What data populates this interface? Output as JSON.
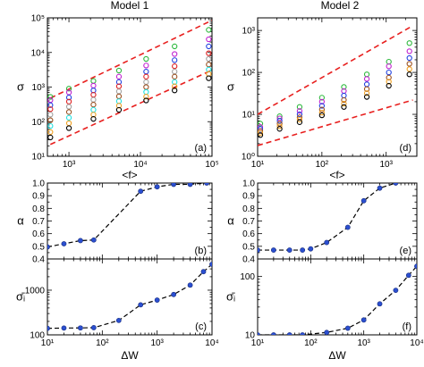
{
  "figure": {
    "titles": [
      "Model 1",
      "Model 2"
    ]
  },
  "chart_data": [
    {
      "type": "scatter",
      "panel": "(a)",
      "title": "Model 1",
      "xlabel": "<f>",
      "ylabel": "σ",
      "xscale": "log",
      "yscale": "log",
      "xlim": [
        500,
        100000
      ],
      "ylim": [
        10,
        100000
      ],
      "xticklabels": [
        "10³",
        "10⁴",
        "10⁵"
      ],
      "yticklabels": [
        "10¹",
        "10²",
        "10³",
        "10⁴",
        "10⁵"
      ],
      "bounds": [
        {
          "style": "dashed",
          "color": "#e8201f",
          "points": [
            [
              550,
              480
            ],
            [
              100000,
              85000
            ]
          ]
        },
        {
          "style": "dashed",
          "color": "#e8201f",
          "points": [
            [
              550,
              22
            ],
            [
              100000,
              3100
            ]
          ]
        }
      ],
      "series": [
        {
          "color": "#2db83d",
          "x": [
            550,
            1000,
            2200,
            5000,
            12000,
            30000,
            90000
          ],
          "y": [
            520,
            900,
            1500,
            3000,
            6500,
            15000,
            45000
          ]
        },
        {
          "color": "#c020d0",
          "x": [
            550,
            1000,
            2200,
            5000,
            12000,
            30000,
            90000
          ],
          "y": [
            420,
            700,
            1100,
            2000,
            4200,
            9000,
            24000
          ]
        },
        {
          "color": "#2040e0",
          "x": [
            550,
            1000,
            2200,
            5000,
            12000,
            30000,
            90000
          ],
          "y": [
            300,
            500,
            800,
            1400,
            2800,
            6000,
            15000
          ]
        },
        {
          "color": "#e02020",
          "x": [
            550,
            1000,
            2200,
            5000,
            12000,
            30000,
            90000
          ],
          "y": [
            230,
            380,
            600,
            1050,
            2000,
            4000,
            9500
          ]
        },
        {
          "color": "#a0a0a0",
          "x": [
            550,
            1000,
            2200,
            5000,
            12000,
            30000,
            90000
          ],
          "y": [
            160,
            270,
            430,
            750,
            1400,
            2800,
            6500
          ]
        },
        {
          "color": "#9a5020",
          "x": [
            550,
            1000,
            2200,
            5000,
            12000,
            30000,
            90000
          ],
          "y": [
            110,
            190,
            310,
            540,
            1000,
            2000,
            4500
          ]
        },
        {
          "color": "#20e0e0",
          "x": [
            550,
            1000,
            2200,
            5000,
            12000,
            30000,
            90000
          ],
          "y": [
            75,
            130,
            220,
            390,
            720,
            1400,
            3200
          ]
        },
        {
          "color": "#f0a020",
          "x": [
            550,
            1000,
            2200,
            5000,
            12000,
            30000,
            90000
          ],
          "y": [
            50,
            90,
            160,
            290,
            530,
            1050,
            2400
          ]
        },
        {
          "color": "#000000",
          "x": [
            550,
            1000,
            2200,
            5000,
            12000,
            30000,
            90000
          ],
          "y": [
            35,
            65,
            120,
            220,
            410,
            800,
            1800
          ]
        }
      ]
    },
    {
      "type": "scatter",
      "panel": "(d)",
      "title": "Model 2",
      "xlabel": "<f>",
      "ylabel": "σ",
      "xscale": "log",
      "yscale": "log",
      "xlim": [
        10,
        3000
      ],
      "ylim": [
        1,
        2000
      ],
      "xticklabels": [
        "10¹",
        "10²",
        "10³"
      ],
      "yticklabels": [
        "10⁰",
        "10¹",
        "10²",
        "10³"
      ],
      "bounds": [
        {
          "style": "dashed",
          "color": "#e8201f",
          "points": [
            [
              10,
              10
            ],
            [
              2600,
              1300
            ]
          ]
        },
        {
          "style": "dashed",
          "color": "#e8201f",
          "points": [
            [
              10,
              1.8
            ],
            [
              2600,
              22
            ]
          ]
        }
      ],
      "series": [
        {
          "color": "#2db83d",
          "x": [
            11,
            22,
            45,
            100,
            220,
            500,
            1100,
            2300
          ],
          "y": [
            6,
            9,
            15,
            25,
            45,
            90,
            180,
            500
          ]
        },
        {
          "color": "#c020d0",
          "x": [
            11,
            22,
            45,
            100,
            220,
            500,
            1100,
            2300
          ],
          "y": [
            5,
            8,
            12,
            20,
            36,
            70,
            140,
            320
          ]
        },
        {
          "color": "#2040e0",
          "x": [
            11,
            22,
            45,
            100,
            220,
            500,
            1100,
            2300
          ],
          "y": [
            4.5,
            7,
            10,
            16,
            28,
            52,
            100,
            220
          ]
        },
        {
          "color": "#9a5020",
          "x": [
            11,
            22,
            45,
            100,
            220,
            500,
            1100,
            2300
          ],
          "y": [
            4,
            6,
            8.5,
            13,
            22,
            40,
            75,
            160
          ]
        },
        {
          "color": "#f0a020",
          "x": [
            11,
            22,
            45,
            100,
            220,
            500,
            1100,
            2300
          ],
          "y": [
            3.6,
            5.2,
            7.5,
            11,
            18,
            32,
            60,
            120
          ]
        },
        {
          "color": "#000000",
          "x": [
            11,
            22,
            45,
            100,
            220,
            500,
            1100,
            2300
          ],
          "y": [
            3.2,
            4.5,
            6.5,
            9.5,
            15,
            26,
            48,
            90
          ]
        }
      ]
    },
    {
      "type": "line",
      "panel": "(b)",
      "xlabel": "",
      "ylabel": "α",
      "xscale": "log",
      "xlim": [
        10,
        10000
      ],
      "ylim": [
        0.4,
        1.0
      ],
      "yticklabels": [
        "0.4",
        "0.5",
        "0.6",
        "0.7",
        "0.8",
        "0.9",
        "1.0"
      ],
      "series": [
        {
          "x": [
            10,
            20,
            40,
            70,
            500,
            1000,
            2000,
            4000,
            8000
          ],
          "y": [
            0.495,
            0.52,
            0.545,
            0.55,
            0.935,
            0.97,
            0.99,
            0.99,
            1.0
          ]
        }
      ]
    },
    {
      "type": "line",
      "panel": "(e)",
      "xlabel": "",
      "ylabel": "α",
      "xscale": "log",
      "xlim": [
        10,
        10000
      ],
      "ylim": [
        0.4,
        1.0
      ],
      "yticklabels": [
        "0.4",
        "0.5",
        "0.6",
        "0.7",
        "0.8",
        "0.9",
        "1.0"
      ],
      "series": [
        {
          "x": [
            10,
            20,
            40,
            70,
            100,
            200,
            500,
            1000,
            2000,
            4000
          ],
          "y": [
            0.47,
            0.47,
            0.47,
            0.47,
            0.48,
            0.53,
            0.65,
            0.86,
            0.96,
            1.0
          ]
        }
      ]
    },
    {
      "type": "line",
      "panel": "(c)",
      "xlabel": "ΔW",
      "ylabel": "σ̄ᵢ",
      "xscale": "log",
      "yscale": "log",
      "xlim": [
        10,
        10000
      ],
      "ylim": [
        100,
        5000
      ],
      "xticklabels": [
        "10¹",
        "10²",
        "10³",
        "10⁴"
      ],
      "yticklabels": [
        "100",
        "1000"
      ],
      "series": [
        {
          "x": [
            10,
            20,
            40,
            70,
            200,
            500,
            1000,
            2000,
            4000,
            7000,
            10000
          ],
          "y": [
            140,
            142,
            143,
            145,
            210,
            470,
            600,
            800,
            1300,
            2600,
            3800
          ]
        }
      ]
    },
    {
      "type": "line",
      "panel": "(f)",
      "xlabel": "ΔW",
      "ylabel": "σ̄ᵢ",
      "xscale": "log",
      "yscale": "log",
      "xlim": [
        10,
        10000
      ],
      "ylim": [
        10,
        200
      ],
      "xticklabels": [
        "10¹",
        "10²",
        "10³",
        "10⁴"
      ],
      "yticklabels": [
        "10",
        "100"
      ],
      "series": [
        {
          "x": [
            10,
            20,
            40,
            70,
            200,
            500,
            1000,
            2000,
            4000,
            7000,
            10000
          ],
          "y": [
            10,
            10,
            10,
            10,
            11,
            13,
            18,
            34,
            58,
            105,
            150
          ]
        }
      ]
    }
  ]
}
